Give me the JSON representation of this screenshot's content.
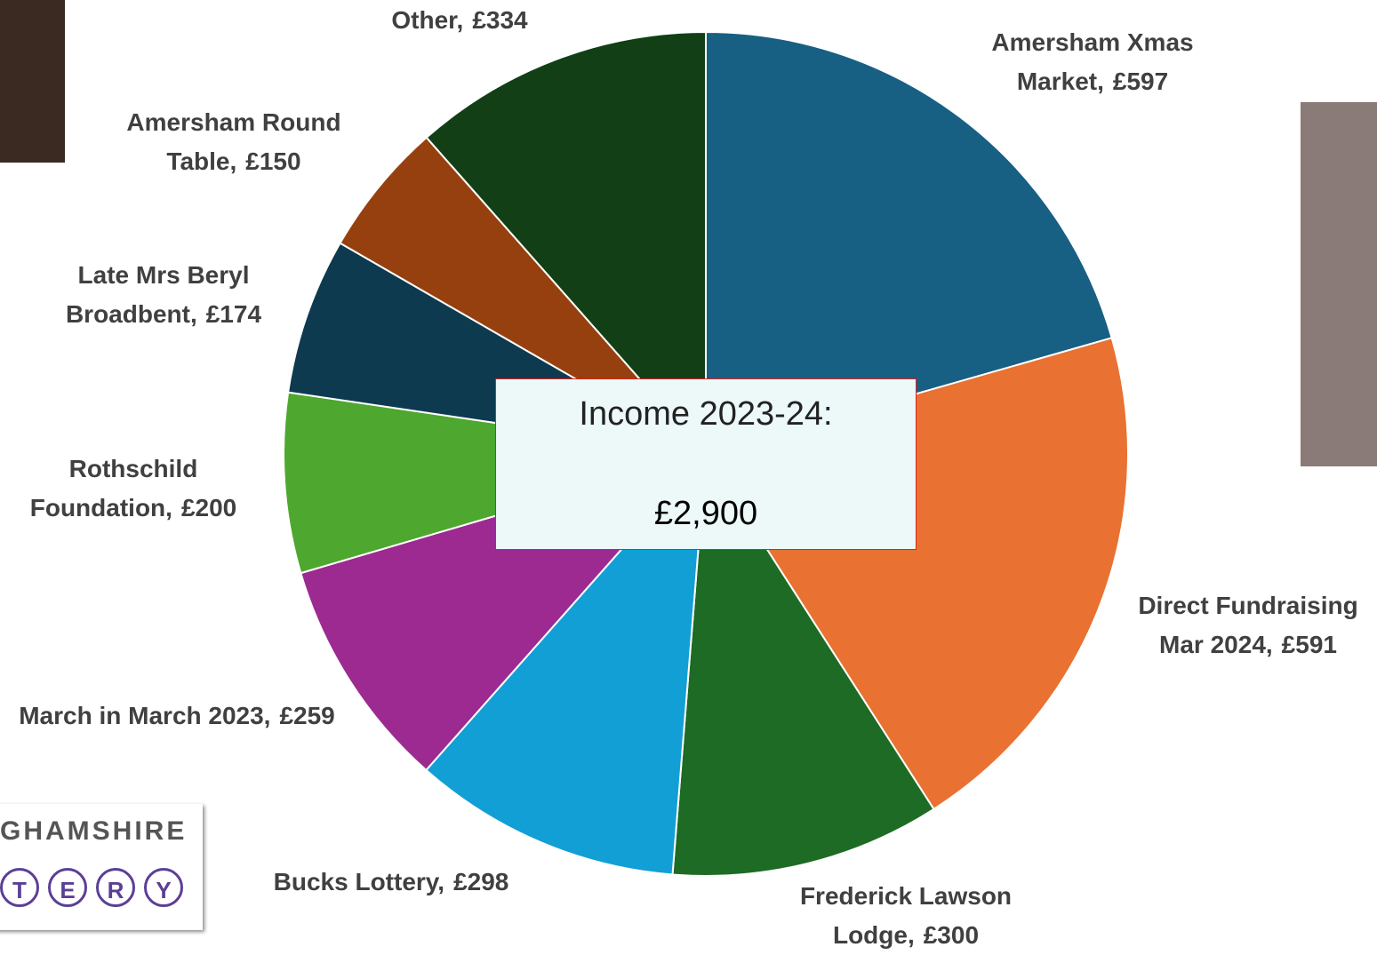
{
  "chart_data": {
    "type": "pie",
    "categories": [
      "Amersham Xmas Market,",
      "Direct Fundraising Mar 2024,",
      "Frederick Lawson Lodge,",
      "Bucks Lottery,",
      "March in March 2023,",
      "Rothschild Foundation,",
      "Late Mrs Beryl Broadbent,",
      "Amersham Round Table,",
      "Other,"
    ],
    "values": [
      597,
      591,
      300,
      298,
      259,
      200,
      174,
      150,
      334
    ],
    "value_labels": [
      "£597",
      "£591",
      "£300",
      "£298",
      "£259",
      "£200",
      "£174",
      "£150",
      "£334"
    ],
    "colors": [
      "#175f83",
      "#e97132",
      "#1d6b24",
      "#129fd6",
      "#9c2a91",
      "#4ea72e",
      "#0e3a4f",
      "#97400f",
      "#123f16"
    ],
    "center_title": "Income 2023-24:",
    "center_value": "£2,900"
  },
  "logo": {
    "text": "GHAMSHIRE",
    "letters": [
      "T",
      "E",
      "R",
      "Y"
    ]
  }
}
